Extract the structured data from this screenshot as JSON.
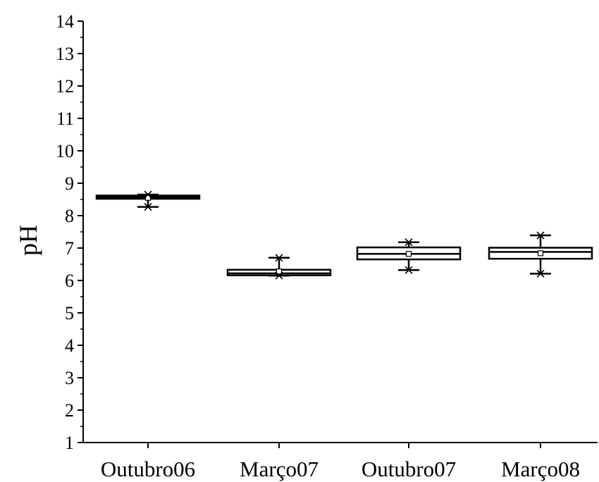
{
  "chart_data": {
    "type": "box",
    "ylabel": "pH",
    "xlabel": "",
    "ylim": [
      1,
      14
    ],
    "yticks": [
      "1",
      "2",
      "3",
      "4",
      "5",
      "6",
      "7",
      "8",
      "9",
      "10",
      "11",
      "12",
      "13",
      "14"
    ],
    "categories": [
      "Outubro06",
      "Março07",
      "Outubro07",
      "Março08"
    ],
    "boxes": [
      {
        "min": 8.27,
        "q1": 8.52,
        "median": 8.57,
        "q3": 8.62,
        "max": 8.65,
        "mean": 8.55,
        "extremes": [
          8.27,
          8.65
        ]
      },
      {
        "min": 6.15,
        "q1": 6.16,
        "median": 6.22,
        "q3": 6.33,
        "max": 6.7,
        "mean": 6.28,
        "extremes": [
          6.15,
          6.7
        ]
      },
      {
        "min": 6.32,
        "q1": 6.65,
        "median": 6.82,
        "q3": 7.02,
        "max": 7.18,
        "mean": 6.82,
        "extremes": [
          6.32,
          7.18
        ]
      },
      {
        "min": 6.21,
        "q1": 6.67,
        "median": 6.88,
        "q3": 7.01,
        "max": 7.39,
        "mean": 6.84,
        "extremes": [
          6.21,
          7.39
        ]
      }
    ],
    "grid": false,
    "legend": "none"
  }
}
